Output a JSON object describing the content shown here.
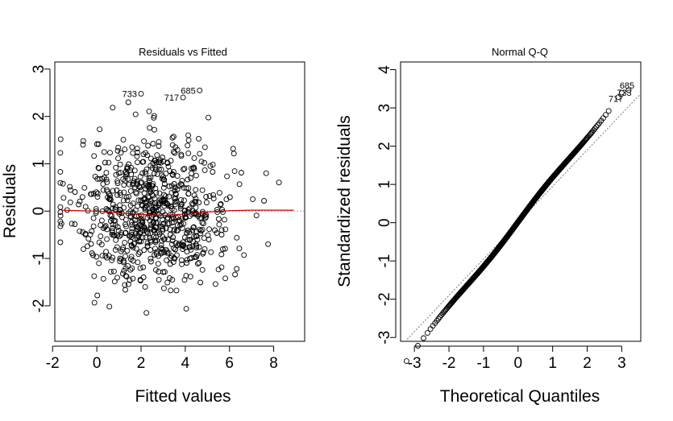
{
  "chart_data": [
    {
      "type": "scatter",
      "title": "Residuals vs Fitted",
      "xlabel": "Fitted values",
      "ylabel": "Residuals",
      "xlim": [
        -1.9,
        9.4
      ],
      "ylim": [
        -2.75,
        3.15
      ],
      "xticks": [
        -2,
        0,
        2,
        4,
        6,
        8
      ],
      "yticks": [
        -2,
        -1,
        0,
        1,
        2,
        3
      ],
      "reference_line_y": 0,
      "smooth_color": "#cc0000",
      "smooth_line": [
        [
          -1.6,
          0.02
        ],
        [
          0,
          0.0
        ],
        [
          1,
          -0.04
        ],
        [
          2,
          -0.07
        ],
        [
          3,
          -0.09
        ],
        [
          4,
          -0.06
        ],
        [
          5,
          -0.02
        ],
        [
          6,
          0.01
        ],
        [
          7,
          0.02
        ],
        [
          8,
          0.02
        ],
        [
          8.9,
          0.02
        ]
      ],
      "highlighted": [
        {
          "id": "733",
          "x": 2.0,
          "y": 2.48
        },
        {
          "id": "685",
          "x": 4.65,
          "y": 2.55
        },
        {
          "id": "717",
          "x": 3.9,
          "y": 2.4
        }
      ],
      "n_points": 800
    },
    {
      "type": "scatter",
      "title": "Normal Q-Q",
      "xlabel": "Theoretical Quantiles",
      "ylabel": "Standardized residuals",
      "xlim": [
        -3.4,
        3.55
      ],
      "ylim": [
        -3.1,
        4.2
      ],
      "xticks": [
        -3,
        -2,
        -1,
        0,
        1,
        2,
        3
      ],
      "yticks": [
        -3,
        -2,
        -1,
        0,
        1,
        2,
        3,
        4
      ],
      "reference_line": {
        "slope": 0.95,
        "intercept": 0.0
      },
      "highlighted": [
        {
          "id": "685",
          "x": 3.2,
          "y": 3.46
        },
        {
          "id": "733",
          "x": 3.0,
          "y": 3.4
        },
        {
          "id": "717",
          "x": 2.9,
          "y": 3.28
        }
      ],
      "n_points": 800
    }
  ]
}
